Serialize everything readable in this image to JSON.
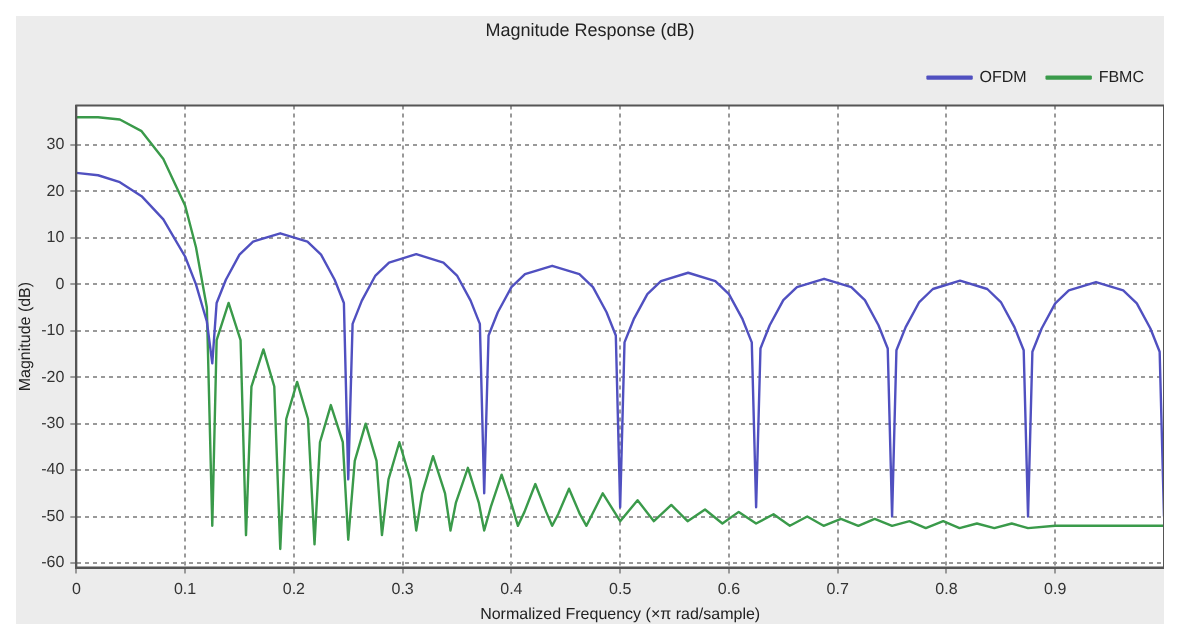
{
  "chart_data": {
    "type": "line",
    "title": "Magnitude Response (dB)",
    "xlabel": "Normalized Frequency (×π rad/sample)",
    "ylabel": "Magnitude (dB)",
    "xlim": [
      0,
      1
    ],
    "xticks": [
      0,
      0.1,
      0.2,
      0.3,
      0.4,
      0.5,
      0.6,
      0.7,
      0.8,
      0.9
    ],
    "ylim": [
      -61,
      38.5
    ],
    "yticks": [
      -60,
      -50,
      -40,
      -30,
      -20,
      -10,
      0,
      10,
      20,
      30
    ],
    "grid": true,
    "legend": "top right",
    "series": [
      {
        "name": "OFDM",
        "color": "#5050c0",
        "x": [
          0,
          0.02,
          0.04,
          0.06,
          0.08,
          0.1,
          0.11,
          0.12,
          0.125,
          0.129,
          0.1375,
          0.15,
          0.1625,
          0.1875,
          0.2125,
          0.225,
          0.2375,
          0.246,
          0.25,
          0.254,
          0.2625,
          0.275,
          0.2875,
          0.3125,
          0.3375,
          0.35,
          0.3625,
          0.371,
          0.375,
          0.379,
          0.3875,
          0.4,
          0.4125,
          0.4375,
          0.4625,
          0.475,
          0.4875,
          0.496,
          0.5,
          0.504,
          0.5125,
          0.525,
          0.5375,
          0.5625,
          0.5875,
          0.6,
          0.6125,
          0.621,
          0.625,
          0.629,
          0.6375,
          0.65,
          0.6625,
          0.6875,
          0.7125,
          0.725,
          0.7375,
          0.746,
          0.75,
          0.754,
          0.7625,
          0.775,
          0.7875,
          0.8125,
          0.8375,
          0.85,
          0.8625,
          0.871,
          0.875,
          0.879,
          0.8875,
          0.9,
          0.9125,
          0.9375,
          0.9625,
          0.975,
          0.9875,
          0.996,
          1
        ],
        "values": [
          24,
          23.5,
          22,
          19,
          14,
          6,
          0,
          -8,
          -17,
          -4,
          1,
          6.4,
          9.2,
          11,
          9.2,
          6.4,
          1,
          -4,
          -42,
          -8.5,
          -3.5,
          1.9,
          4.7,
          6.5,
          4.7,
          1.9,
          -3.5,
          -8.5,
          -45,
          -11,
          -6,
          -0.6,
          2.2,
          4,
          2.2,
          -0.6,
          -6,
          -11,
          -48,
          -12.5,
          -7.5,
          -2.1,
          0.7,
          2.5,
          0.7,
          -2.1,
          -7.5,
          -12.5,
          -48,
          -13.8,
          -8.8,
          -3.4,
          -0.6,
          1.2,
          -0.6,
          -3.4,
          -8.8,
          -13.8,
          -50,
          -14.2,
          -9.2,
          -3.8,
          -1,
          0.8,
          -1,
          -3.8,
          -9.2,
          -14.2,
          -50,
          -14.5,
          -9.5,
          -4.1,
          -1.3,
          0.5,
          -1.3,
          -4.1,
          -9.5,
          -14.5,
          -50
        ]
      },
      {
        "name": "FBMC",
        "color": "#3a9a4a",
        "x": [
          0,
          0.02,
          0.04,
          0.06,
          0.08,
          0.1,
          0.11,
          0.12,
          0.125,
          0.129,
          0.14,
          0.151,
          0.156,
          0.161,
          0.172,
          0.182,
          0.1875,
          0.193,
          0.203,
          0.213,
          0.219,
          0.224,
          0.234,
          0.245,
          0.25,
          0.256,
          0.266,
          0.276,
          0.281,
          0.287,
          0.297,
          0.307,
          0.3125,
          0.318,
          0.328,
          0.339,
          0.344,
          0.349,
          0.36,
          0.37,
          0.375,
          0.381,
          0.391,
          0.401,
          0.406,
          0.412,
          0.422,
          0.432,
          0.4375,
          0.443,
          0.453,
          0.463,
          0.469,
          0.484,
          0.5,
          0.516,
          0.531,
          0.547,
          0.562,
          0.578,
          0.594,
          0.609,
          0.625,
          0.641,
          0.656,
          0.672,
          0.687,
          0.703,
          0.719,
          0.734,
          0.75,
          0.766,
          0.781,
          0.797,
          0.812,
          0.828,
          0.844,
          0.86,
          0.875,
          0.9,
          0.95,
          1
        ],
        "values": [
          36,
          36,
          35.5,
          33,
          27,
          17,
          8,
          -5,
          -52,
          -12,
          -4,
          -12,
          -54,
          -22,
          -14,
          -22,
          -57,
          -29,
          -21,
          -29,
          -56,
          -34,
          -26,
          -34,
          -55,
          -38,
          -30,
          -38,
          -54,
          -42,
          -34,
          -42,
          -53,
          -45,
          -37,
          -45,
          -53,
          -47,
          -39.5,
          -47,
          -53,
          -48,
          -41,
          -48,
          -52,
          -49,
          -43,
          -49,
          -52,
          -49.5,
          -44,
          -49.5,
          -52,
          -45,
          -51,
          -46.5,
          -51,
          -47.5,
          -51,
          -48.5,
          -51.5,
          -49,
          -51.5,
          -49.5,
          -52,
          -50,
          -52,
          -50.5,
          -52,
          -50.5,
          -52,
          -51,
          -52.5,
          -51,
          -52.5,
          -51.5,
          -52.5,
          -51.5,
          -52.5,
          -52,
          -52,
          -52
        ]
      }
    ]
  }
}
